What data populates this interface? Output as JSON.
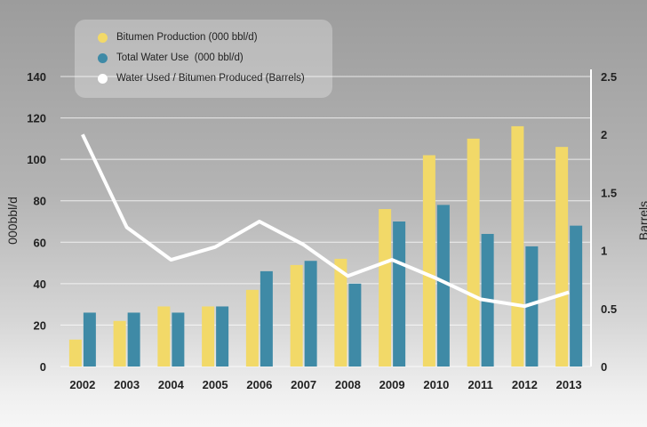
{
  "chart_data": {
    "type": "bar",
    "categories": [
      "2002",
      "2003",
      "2004",
      "2005",
      "2006",
      "2007",
      "2008",
      "2009",
      "2010",
      "2011",
      "2012",
      "2013"
    ],
    "series": [
      {
        "name": "Bitumen Production (000 bbl/d)",
        "kind": "bar",
        "axis": "left",
        "color": "#f2d968",
        "values": [
          13,
          22,
          29,
          29,
          37,
          49,
          52,
          76,
          102,
          110,
          116,
          106
        ]
      },
      {
        "name": "Total Water Use  (000 bbl/d)",
        "kind": "bar",
        "axis": "left",
        "color": "#3f8aa6",
        "values": [
          26,
          26,
          26,
          29,
          46,
          51,
          40,
          70,
          78,
          64,
          58,
          68
        ]
      },
      {
        "name": "Water Used / Bitumen Produced (Barrels)",
        "kind": "line",
        "axis": "right",
        "color": "#ffffff",
        "values": [
          2.0,
          1.2,
          0.92,
          1.03,
          1.25,
          1.05,
          0.78,
          0.92,
          0.76,
          0.58,
          0.52,
          0.64
        ]
      }
    ],
    "ylabel": "000bbl/d",
    "ylabel_right": "Barrels",
    "ylim": [
      0,
      140
    ],
    "ylim_right": [
      0,
      2.5
    ],
    "yticks": [
      "0",
      "20",
      "40",
      "60",
      "80",
      "100",
      "120",
      "140"
    ],
    "yticks_right": [
      "0",
      "0.5",
      "1",
      "1.5",
      "2",
      "2.5"
    ],
    "grid": true,
    "legend_position": "top-left"
  }
}
